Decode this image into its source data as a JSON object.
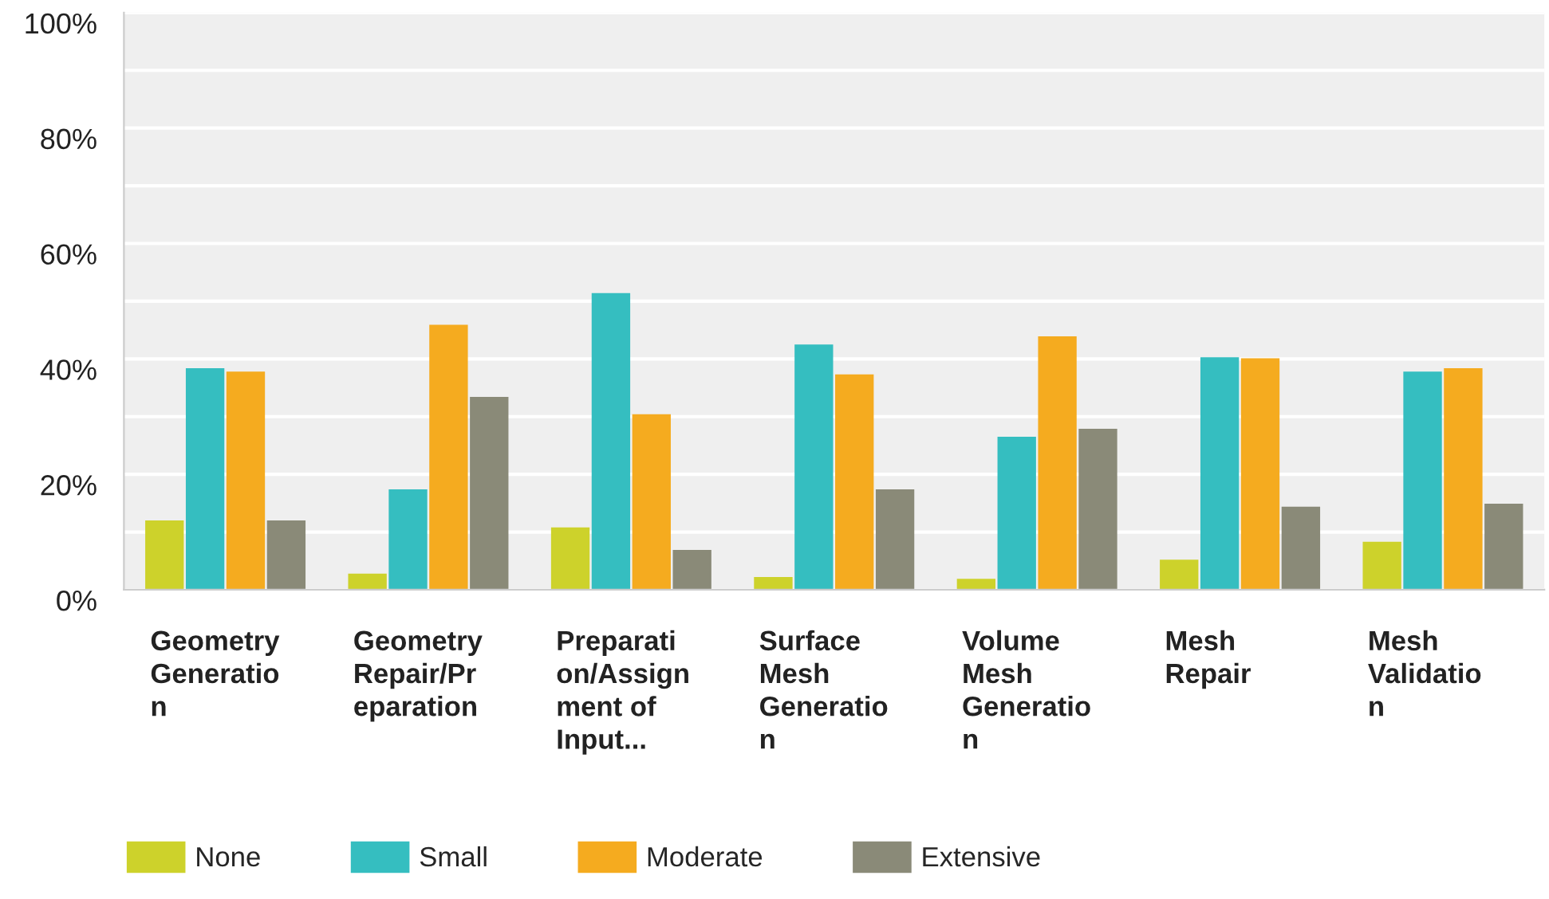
{
  "chart_data": {
    "type": "bar",
    "categories": [
      "Geometry\nGeneratio\nn",
      "Geometry\nRepair/Pr\neparation",
      "Preparati\non/Assign\nment of\nInput...",
      "Surface\nMesh\nGeneratio\nn",
      "Volume\nMesh\nGeneratio\nn",
      "Mesh\nRepair",
      "Mesh\nValidatio\nn"
    ],
    "series": [
      {
        "name": "None",
        "color": "#cdd22b",
        "values": [
          12,
          2.8,
          10.8,
          2.2,
          1.9,
          5.2,
          8.3
        ]
      },
      {
        "name": "Small",
        "color": "#35bec0",
        "values": [
          38.4,
          17.4,
          51.4,
          42.5,
          26.5,
          40.3,
          37.8
        ]
      },
      {
        "name": "Moderate",
        "color": "#f5ab1f",
        "values": [
          37.8,
          45.9,
          30.4,
          37.3,
          43.9,
          40.1,
          38.4
        ]
      },
      {
        "name": "Extensive",
        "color": "#8a8a78",
        "values": [
          12,
          33.4,
          6.9,
          17.4,
          27.9,
          14.4,
          14.9
        ]
      }
    ],
    "ylim": [
      0,
      100
    ],
    "yticks": [
      {
        "value": 0,
        "label": "0%"
      },
      {
        "value": 10,
        "label": null
      },
      {
        "value": 20,
        "label": "20%"
      },
      {
        "value": 30,
        "label": null
      },
      {
        "value": 40,
        "label": "40%"
      },
      {
        "value": 50,
        "label": null
      },
      {
        "value": 60,
        "label": "60%"
      },
      {
        "value": 70,
        "label": null
      },
      {
        "value": 80,
        "label": "80%"
      },
      {
        "value": 90,
        "label": null
      },
      {
        "value": 100,
        "label": "100%"
      }
    ],
    "grid": "y",
    "legend": "bottom left"
  }
}
